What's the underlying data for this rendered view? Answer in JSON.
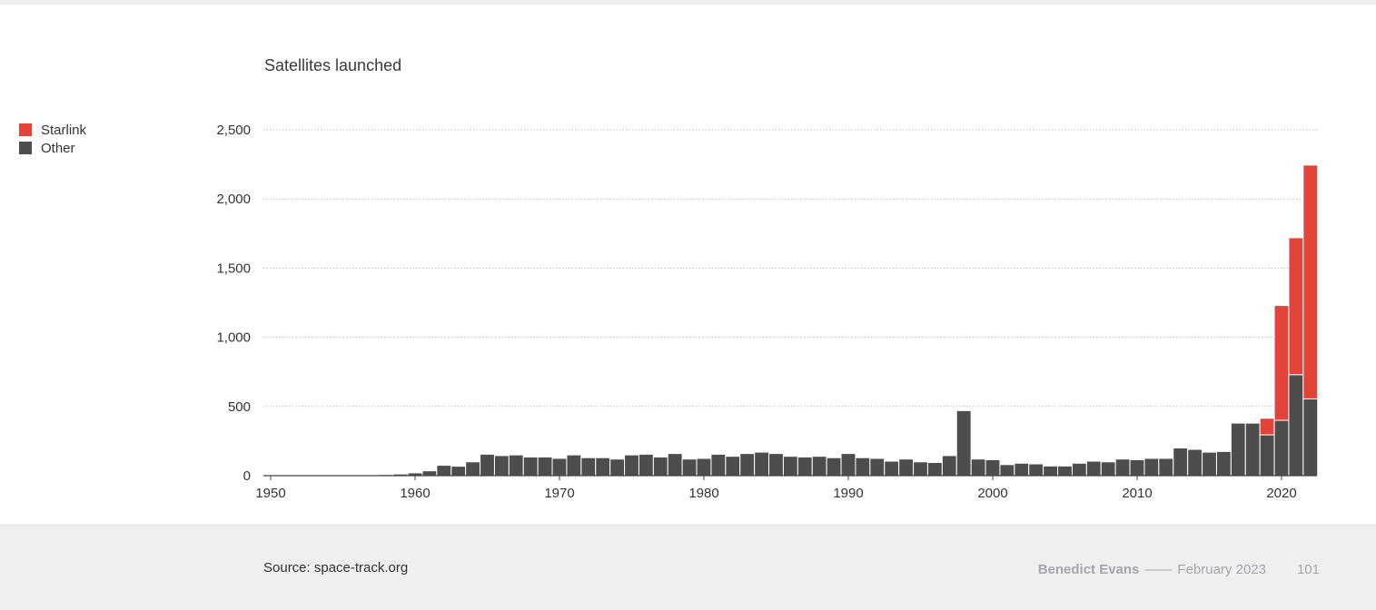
{
  "page": {
    "source": "Source: space-track.org",
    "author": "Benedict Evans",
    "separator": "——",
    "date": "February 2023",
    "page_number": "101"
  },
  "colors": {
    "starlink": "#e2443a",
    "other": "#4d4d4d"
  },
  "chart_data": {
    "type": "bar",
    "stacked": true,
    "title": "Satellites launched",
    "xlabel": "",
    "ylabel": "",
    "ylim": [
      0,
      2500
    ],
    "yticks": [
      0,
      500,
      1000,
      1500,
      2000,
      2500
    ],
    "ytick_labels": [
      "0",
      "500",
      "1,000",
      "1,500",
      "2,000",
      "2,500"
    ],
    "xticks": [
      1950,
      1960,
      1970,
      1980,
      1990,
      2000,
      2010,
      2020
    ],
    "grid": true,
    "legend_position": "left",
    "categories": [
      1957,
      1958,
      1959,
      1960,
      1961,
      1962,
      1963,
      1964,
      1965,
      1966,
      1967,
      1968,
      1969,
      1970,
      1971,
      1972,
      1973,
      1974,
      1975,
      1976,
      1977,
      1978,
      1979,
      1980,
      1981,
      1982,
      1983,
      1984,
      1985,
      1986,
      1987,
      1988,
      1989,
      1990,
      1991,
      1992,
      1993,
      1994,
      1995,
      1996,
      1997,
      1998,
      1999,
      2000,
      2001,
      2002,
      2003,
      2004,
      2005,
      2006,
      2007,
      2008,
      2009,
      2010,
      2011,
      2012,
      2013,
      2014,
      2015,
      2016,
      2017,
      2018,
      2019,
      2020,
      2021,
      2022
    ],
    "series": [
      {
        "name": "Other",
        "values": [
          3,
          8,
          12,
          20,
          35,
          75,
          68,
          100,
          155,
          145,
          150,
          135,
          135,
          125,
          150,
          130,
          130,
          120,
          150,
          155,
          135,
          160,
          120,
          125,
          155,
          140,
          160,
          170,
          160,
          140,
          135,
          140,
          130,
          160,
          130,
          125,
          105,
          120,
          100,
          95,
          145,
          470,
          120,
          115,
          80,
          90,
          85,
          70,
          70,
          90,
          105,
          100,
          120,
          115,
          125,
          125,
          200,
          190,
          170,
          175,
          380,
          380,
          295,
          400,
          730,
          555
        ]
      },
      {
        "name": "Starlink",
        "values": [
          0,
          0,
          0,
          0,
          0,
          0,
          0,
          0,
          0,
          0,
          0,
          0,
          0,
          0,
          0,
          0,
          0,
          0,
          0,
          0,
          0,
          0,
          0,
          0,
          0,
          0,
          0,
          0,
          0,
          0,
          0,
          0,
          0,
          0,
          0,
          0,
          0,
          0,
          0,
          0,
          0,
          0,
          0,
          0,
          0,
          0,
          0,
          0,
          0,
          0,
          0,
          0,
          0,
          0,
          0,
          0,
          0,
          0,
          0,
          0,
          0,
          0,
          120,
          830,
          990,
          1690
        ]
      }
    ]
  }
}
